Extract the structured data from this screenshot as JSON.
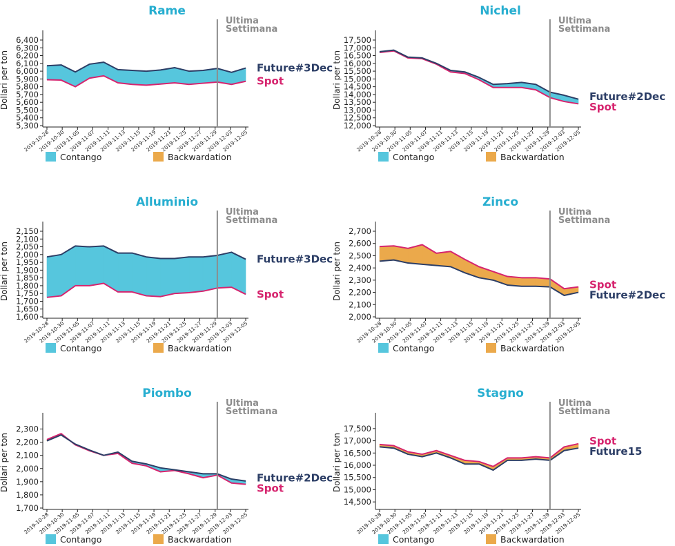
{
  "colors": {
    "title": "#27aed0",
    "future": "#2c3e66",
    "spot": "#d6246e",
    "contango": "#56c6dd",
    "backwardation": "#eba94b",
    "marker": "#8c8c8c"
  },
  "legend": {
    "contango": "Contango",
    "backwardation": "Backwardation"
  },
  "marker_label": [
    "Ultima",
    "Settimana"
  ],
  "marker_date": "2019-11-29",
  "ylabel": "Dollari per ton",
  "x_ticks": [
    "2019-10-28",
    "2019-10-30",
    "2019-11-05",
    "2019-11-07",
    "2019-11-11",
    "2019-11-13",
    "2019-11-15",
    "2019-11-19",
    "2019-11-21",
    "2019-11-25",
    "2019-11-27",
    "2019-11-29",
    "2019-12-03",
    "2019-12-05"
  ],
  "chart_data": [
    {
      "type": "area",
      "title": "Rame",
      "future_label": "Future#3Dec",
      "spot_label": "Spot",
      "label_order": [
        "future",
        "spot"
      ],
      "ylim": [
        5300,
        6400
      ],
      "yticks": [
        "6,400",
        "6,300",
        "6,200",
        "6,100",
        "6,000",
        "5,900",
        "5,800",
        "5,700",
        "5,600",
        "5,500",
        "5,400",
        "5,300"
      ],
      "dates": [
        "2019-10-28",
        "2019-10-30",
        "2019-11-01",
        "2019-11-05",
        "2019-11-07",
        "2019-11-11",
        "2019-11-13",
        "2019-11-15",
        "2019-11-19",
        "2019-11-21",
        "2019-11-25",
        "2019-11-27",
        "2019-11-29",
        "2019-12-03",
        "2019-12-05"
      ],
      "series": [
        {
          "name": "Future#3Dec",
          "values": [
            6070,
            6080,
            5990,
            6090,
            6115,
            6020,
            6010,
            6000,
            6015,
            6045,
            6000,
            6010,
            6035,
            5985,
            6040
          ]
        },
        {
          "name": "Spot",
          "values": [
            5890,
            5885,
            5800,
            5910,
            5940,
            5850,
            5830,
            5820,
            5835,
            5850,
            5830,
            5845,
            5860,
            5830,
            5870
          ]
        }
      ]
    },
    {
      "type": "area",
      "title": "Nichel",
      "future_label": "Future#2Dec",
      "spot_label": "Spot",
      "label_order": [
        "future",
        "spot"
      ],
      "ylim": [
        12000,
        17500
      ],
      "yticks": [
        "17,500",
        "17,000",
        "16,500",
        "16,000",
        "15,500",
        "15,000",
        "14,500",
        "14,000",
        "13,500",
        "13,000",
        "12,500",
        "12,000"
      ],
      "dates": [
        "2019-10-28",
        "2019-10-30",
        "2019-11-01",
        "2019-11-05",
        "2019-11-07",
        "2019-11-11",
        "2019-11-13",
        "2019-11-15",
        "2019-11-19",
        "2019-11-21",
        "2019-11-25",
        "2019-11-27",
        "2019-11-29",
        "2019-12-03",
        "2019-12-05"
      ],
      "series": [
        {
          "name": "Future#2Dec",
          "values": [
            16750,
            16850,
            16400,
            16350,
            16000,
            15550,
            15450,
            15100,
            14650,
            14700,
            14780,
            14650,
            14150,
            13950,
            13700
          ]
        },
        {
          "name": "Spot",
          "values": [
            16700,
            16800,
            16350,
            16300,
            15950,
            15450,
            15350,
            14950,
            14450,
            14450,
            14450,
            14300,
            13800,
            13550,
            13400
          ]
        }
      ]
    },
    {
      "type": "area",
      "title": "Alluminio",
      "future_label": "Future#3Dec",
      "spot_label": "Spot",
      "label_order": [
        "future",
        "spot"
      ],
      "ylim": [
        1600,
        2150
      ],
      "yticks": [
        "2,150",
        "2,100",
        "2,050",
        "2,000",
        "1,950",
        "1,900",
        "1,850",
        "1,800",
        "1,750",
        "1,700",
        "1,650",
        "1,600"
      ],
      "dates": [
        "2019-10-28",
        "2019-10-30",
        "2019-11-01",
        "2019-11-05",
        "2019-11-07",
        "2019-11-11",
        "2019-11-13",
        "2019-11-15",
        "2019-11-19",
        "2019-11-21",
        "2019-11-25",
        "2019-11-27",
        "2019-11-29",
        "2019-12-03",
        "2019-12-05"
      ],
      "series": [
        {
          "name": "Future#3Dec",
          "values": [
            1985,
            2000,
            2055,
            2050,
            2055,
            2010,
            2010,
            1985,
            1975,
            1975,
            1985,
            1985,
            1995,
            2015,
            1970
          ]
        },
        {
          "name": "Spot",
          "values": [
            1725,
            1735,
            1800,
            1800,
            1815,
            1760,
            1760,
            1735,
            1730,
            1750,
            1755,
            1765,
            1785,
            1790,
            1745
          ]
        }
      ]
    },
    {
      "type": "area",
      "title": "Zinco",
      "future_label": "Future#2Dec",
      "spot_label": "Spot",
      "label_order": [
        "spot",
        "future"
      ],
      "ylim": [
        2000,
        2700
      ],
      "yticks": [
        "2,700",
        "2,600",
        "2,500",
        "2,400",
        "2,300",
        "2,200",
        "2,100",
        "2,000"
      ],
      "dates": [
        "2019-10-28",
        "2019-10-30",
        "2019-11-01",
        "2019-11-05",
        "2019-11-07",
        "2019-11-11",
        "2019-11-13",
        "2019-11-15",
        "2019-11-19",
        "2019-11-21",
        "2019-11-25",
        "2019-11-27",
        "2019-11-29",
        "2019-12-03",
        "2019-12-05"
      ],
      "series": [
        {
          "name": "Future#2Dec",
          "values": [
            2455,
            2465,
            2440,
            2430,
            2420,
            2410,
            2360,
            2320,
            2300,
            2260,
            2250,
            2250,
            2245,
            2175,
            2200
          ]
        },
        {
          "name": "Spot",
          "values": [
            2575,
            2580,
            2560,
            2590,
            2520,
            2535,
            2470,
            2410,
            2370,
            2330,
            2320,
            2320,
            2310,
            2230,
            2245
          ]
        }
      ]
    },
    {
      "type": "area",
      "title": "Piombo",
      "future_label": "Future#2Dec",
      "spot_label": "Spot",
      "label_order": [
        "future",
        "spot"
      ],
      "ylim": [
        1700,
        2350
      ],
      "yticks": [
        "2,300",
        "2,200",
        "2,100",
        "2,000",
        "1,900",
        "1,800",
        "1,700"
      ],
      "dates": [
        "2019-10-28",
        "2019-10-30",
        "2019-11-01",
        "2019-11-05",
        "2019-11-07",
        "2019-11-11",
        "2019-11-13",
        "2019-11-15",
        "2019-11-19",
        "2019-11-21",
        "2019-11-25",
        "2019-11-27",
        "2019-11-29",
        "2019-12-03",
        "2019-12-05"
      ],
      "series": [
        {
          "name": "Future#2Dec",
          "values": [
            2210,
            2255,
            2185,
            2140,
            2100,
            2125,
            2055,
            2035,
            2005,
            1990,
            1975,
            1960,
            1960,
            1920,
            1905
          ]
        },
        {
          "name": "Spot",
          "values": [
            2220,
            2265,
            2180,
            2135,
            2100,
            2115,
            2040,
            2020,
            1975,
            1985,
            1960,
            1930,
            1950,
            1890,
            1880
          ]
        }
      ]
    },
    {
      "type": "area",
      "title": "Stagno",
      "future_label": "Future15",
      "spot_label": "Spot",
      "label_order": [
        "spot",
        "future"
      ],
      "ylim": [
        14250,
        17750
      ],
      "yticks": [
        "17,500",
        "17,000",
        "16,500",
        "16,000",
        "15,500",
        "15,000",
        "14,500"
      ],
      "dates": [
        "2019-10-28",
        "2019-10-30",
        "2019-11-01",
        "2019-11-05",
        "2019-11-07",
        "2019-11-11",
        "2019-11-13",
        "2019-11-15",
        "2019-11-19",
        "2019-11-21",
        "2019-11-25",
        "2019-11-27",
        "2019-11-29",
        "2019-12-03",
        "2019-12-05"
      ],
      "series": [
        {
          "name": "Future15",
          "values": [
            16750,
            16700,
            16450,
            16350,
            16500,
            16300,
            16050,
            16050,
            15800,
            16200,
            16200,
            16250,
            16200,
            16600,
            16700
          ]
        },
        {
          "name": "Spot",
          "values": [
            16850,
            16800,
            16550,
            16450,
            16600,
            16400,
            16200,
            16150,
            15950,
            16300,
            16300,
            16350,
            16300,
            16750,
            16880
          ]
        }
      ]
    }
  ]
}
